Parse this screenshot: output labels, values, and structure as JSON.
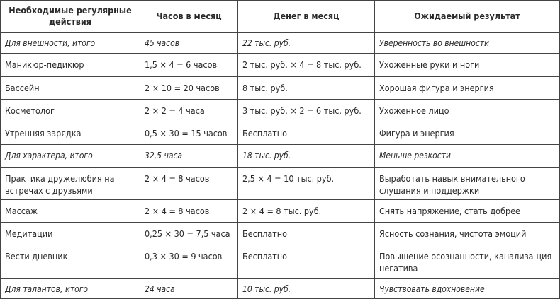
{
  "headers": [
    "Необходимые регулярные действия",
    "Часов в месяц",
    "Денег в месяц",
    "Ожидаемый результат"
  ],
  "rows": [
    {
      "type": "summary",
      "cells": [
        "Для внешности, итого",
        "45 часов",
        "22 тыс. руб.",
        "Уверенность во внешности"
      ]
    },
    {
      "type": "item",
      "cells": [
        "Маникюр-педикюр",
        "1,5 × 4 = 6 часов",
        "2 тыс. руб. × 4 = 8 тыс. руб.",
        "Ухоженные руки и ноги"
      ]
    },
    {
      "type": "item",
      "cells": [
        "Бассейн",
        "2 × 10 = 20 часов",
        "8 тыс. руб.",
        "Хорошая фигура и энергия"
      ]
    },
    {
      "type": "item",
      "cells": [
        "Косметолог",
        "2 × 2 = 4 часа",
        "3 тыс. руб. × 2 = 6 тыс. руб.",
        "Ухоженное лицо"
      ]
    },
    {
      "type": "item",
      "cells": [
        "Утренняя зарядка",
        "0,5 × 30 = 15 часов",
        "Бесплатно",
        "Фигура и энергия"
      ]
    },
    {
      "type": "summary",
      "cells": [
        "Для характера, итого",
        "32,5 часа",
        "18 тыс. руб.",
        "Меньше резкости"
      ]
    },
    {
      "type": "item",
      "cells": [
        "Практика дружелюбия на встречах с друзьями",
        "2 × 4 = 8 часов",
        "2,5 × 4 = 10 тыс. руб.",
        "Выработать навык внимательного слушания и поддержки"
      ]
    },
    {
      "type": "item",
      "cells": [
        "Массаж",
        "2 × 4 = 8 часов",
        "2 × 4 = 8 тыс. руб.",
        "Снять напряжение, стать добрее"
      ]
    },
    {
      "type": "item",
      "cells": [
        "Медитации",
        "0,25 × 30 = 7,5 часа",
        "Бесплатно",
        "Ясность сознания, чистота эмоций"
      ]
    },
    {
      "type": "item",
      "cells": [
        "Вести дневник",
        "0,3 × 30 = 9 часов",
        "Бесплатно",
        "Повышение осознанности, канализа-ция негатива"
      ]
    },
    {
      "type": "summary",
      "cells": [
        "Для талантов, итого",
        "24 часа",
        "10 тыс. руб.",
        "Чувствовать вдохновение"
      ]
    }
  ]
}
